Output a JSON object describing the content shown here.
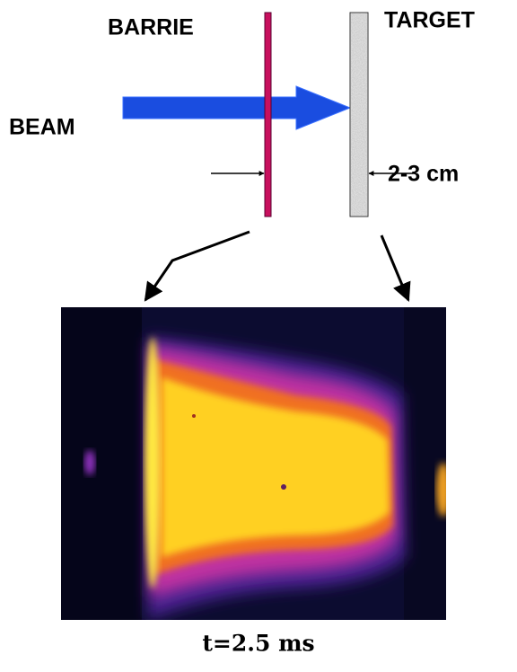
{
  "labels": {
    "barrier": "BARRIE",
    "target": "TARGET",
    "beam": "BEAM",
    "gap": "2-3 cm",
    "time": "t=2.5 ms"
  }
}
